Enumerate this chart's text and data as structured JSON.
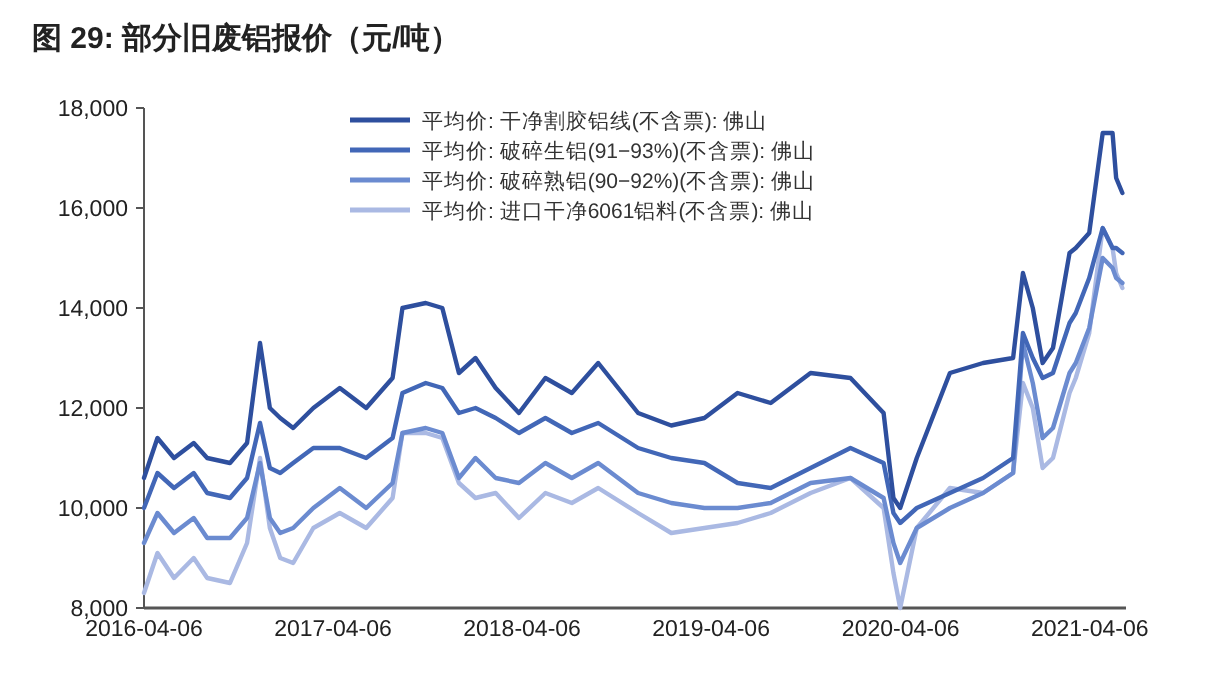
{
  "chart_data": {
    "type": "line",
    "title": "图 29: 部分旧废铝报价（元/吨）",
    "x": [
      "2016-04-06",
      "2016-05-02",
      "2016-06-03",
      "2016-07-11",
      "2016-08-06",
      "2016-09-19",
      "2016-10-22",
      "2016-11-16",
      "2016-12-05",
      "2016-12-25",
      "2017-01-19",
      "2017-02-27",
      "2017-04-19",
      "2017-06-09",
      "2017-07-30",
      "2017-08-18",
      "2017-10-02",
      "2017-11-03",
      "2017-12-05",
      "2018-01-06",
      "2018-02-14",
      "2018-03-31",
      "2018-05-21",
      "2018-07-11",
      "2018-08-31",
      "2018-11-16",
      "2019-01-19",
      "2019-03-24",
      "2019-05-27",
      "2019-07-30",
      "2019-10-15",
      "2019-12-31",
      "2020-03-04",
      "2020-03-23",
      "2020-04-05",
      "2020-05-07",
      "2020-07-10",
      "2020-09-12",
      "2020-11-09",
      "2020-11-28",
      "2020-12-17",
      "2021-01-05",
      "2021-01-25",
      "2021-02-26",
      "2021-03-10",
      "2021-04-05",
      "2021-05-01",
      "2021-05-20",
      "2021-05-27",
      "2021-06-08"
    ],
    "series": [
      {
        "name": "平均价: 干净割胶铝线(不含票): 佛山",
        "color": "#2e4f9e",
        "values": [
          10600,
          11400,
          11000,
          11300,
          11000,
          10900,
          11300,
          13300,
          12000,
          11800,
          11600,
          12000,
          12400,
          12000,
          12600,
          14000,
          14100,
          14000,
          12700,
          13000,
          12400,
          11900,
          12600,
          12300,
          12900,
          11900,
          11650,
          11800,
          12300,
          12100,
          12700,
          12600,
          11900,
          10200,
          10000,
          11000,
          12700,
          12900,
          13000,
          14700,
          14000,
          12900,
          13200,
          15100,
          15200,
          15500,
          17500,
          17500,
          16600,
          16300
        ]
      },
      {
        "name": "平均价: 破碎生铝(91−93%)(不含票): 佛山",
        "color": "#4267b7",
        "values": [
          10000,
          10700,
          10400,
          10700,
          10300,
          10200,
          10600,
          11700,
          10800,
          10700,
          10900,
          11200,
          11200,
          11000,
          11400,
          12300,
          12500,
          12400,
          11900,
          12000,
          11800,
          11500,
          11800,
          11500,
          11700,
          11200,
          11000,
          10900,
          10500,
          10400,
          10800,
          11200,
          10900,
          9900,
          9700,
          10000,
          10300,
          10600,
          11000,
          13500,
          13000,
          12600,
          12700,
          13700,
          13900,
          14600,
          15600,
          15200,
          15200,
          15100
        ]
      },
      {
        "name": "平均价: 破碎熟铝(90−92%)(不含票): 佛山",
        "color": "#6b8bd0",
        "values": [
          9300,
          9900,
          9500,
          9800,
          9400,
          9400,
          9800,
          10900,
          9800,
          9500,
          9600,
          10000,
          10400,
          10000,
          10500,
          11500,
          11600,
          11500,
          10600,
          11000,
          10600,
          10500,
          10900,
          10600,
          10900,
          10300,
          10100,
          10000,
          10000,
          10100,
          10500,
          10600,
          10200,
          9300,
          8900,
          9600,
          10000,
          10300,
          10700,
          13300,
          12500,
          11400,
          11600,
          12700,
          12900,
          13600,
          15000,
          14800,
          14600,
          14500
        ]
      },
      {
        "name": "平均价: 进口干净6061铝料(不含票): 佛山",
        "color": "#aab9e3",
        "values": [
          8300,
          9100,
          8600,
          9000,
          8600,
          8500,
          9300,
          11000,
          9600,
          9000,
          8900,
          9600,
          9900,
          9600,
          10200,
          11500,
          11500,
          11400,
          10500,
          10200,
          10300,
          9800,
          10300,
          10100,
          10400,
          9900,
          9500,
          9600,
          9700,
          9900,
          10300,
          10600,
          10000,
          8700,
          8000,
          9600,
          10400,
          10300,
          10700,
          12500,
          12000,
          10800,
          11000,
          12300,
          12600,
          13500,
          15600,
          15200,
          14700,
          14400
        ]
      }
    ],
    "xlim": [
      "2016-04-06",
      "2021-06-15"
    ],
    "xticks": [
      "2016-04-06",
      "2017-04-06",
      "2018-04-06",
      "2019-04-06",
      "2020-04-06",
      "2021-04-06"
    ],
    "ylim": [
      8000,
      18000
    ],
    "yticks": [
      {
        "value": 8000,
        "label": "8,000"
      },
      {
        "value": 10000,
        "label": "10,000"
      },
      {
        "value": 12000,
        "label": "12,000"
      },
      {
        "value": 14000,
        "label": "14,000"
      },
      {
        "value": 16000,
        "label": "16,000"
      },
      {
        "value": 18000,
        "label": "18,000"
      }
    ],
    "grid": false,
    "legend": "top",
    "marker": "none",
    "line_style": "solid"
  }
}
